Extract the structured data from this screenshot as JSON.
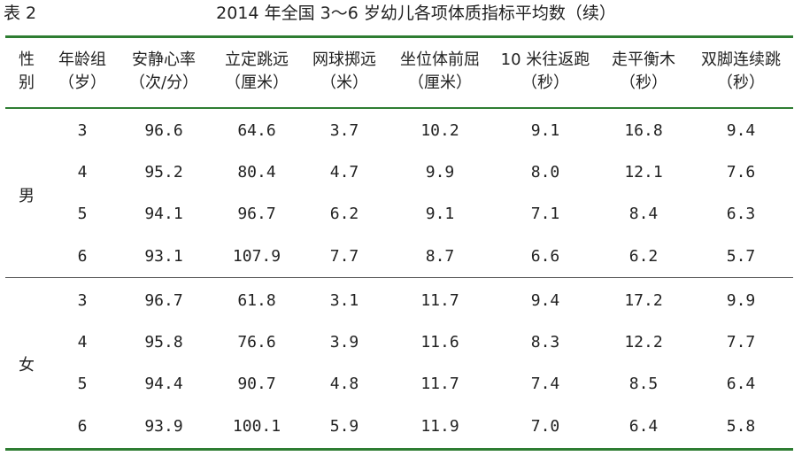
{
  "caption": {
    "label": "表 2",
    "title": "2014 年全国 3～6 岁幼儿各项体质指标平均数（续）"
  },
  "headers": [
    {
      "line1": "性",
      "line2": "别"
    },
    {
      "line1": "年龄组",
      "line2": "（岁）"
    },
    {
      "line1": "安静心率",
      "line2": "（次/分）"
    },
    {
      "line1": "立定跳远",
      "line2": "（厘米）"
    },
    {
      "line1": "网球掷远",
      "line2": "（米）"
    },
    {
      "line1": "坐位体前屈",
      "line2": "（厘米）"
    },
    {
      "line1": "10 米往返跑",
      "line2": "（秒）"
    },
    {
      "line1": "走平衡木",
      "line2": "（秒）"
    },
    {
      "line1": "双脚连续跳",
      "line2": "（秒）"
    }
  ],
  "groups": [
    {
      "gender": "男",
      "rows": [
        [
          "3",
          "96.6",
          "64.6",
          "3.7",
          "10.2",
          "9.1",
          "16.8",
          "9.4"
        ],
        [
          "4",
          "95.2",
          "80.4",
          "4.7",
          "9.9",
          "8.0",
          "12.1",
          "7.6"
        ],
        [
          "5",
          "94.1",
          "96.7",
          "6.2",
          "9.1",
          "7.1",
          "8.4",
          "6.3"
        ],
        [
          "6",
          "93.1",
          "107.9",
          "7.7",
          "8.7",
          "6.6",
          "6.2",
          "5.7"
        ]
      ]
    },
    {
      "gender": "女",
      "rows": [
        [
          "3",
          "96.7",
          "61.8",
          "3.1",
          "11.7",
          "9.4",
          "17.2",
          "9.9"
        ],
        [
          "4",
          "95.8",
          "76.6",
          "3.9",
          "11.6",
          "8.3",
          "12.2",
          "7.7"
        ],
        [
          "5",
          "94.4",
          "90.7",
          "4.8",
          "11.7",
          "7.4",
          "8.5",
          "6.4"
        ],
        [
          "6",
          "93.9",
          "100.1",
          "5.9",
          "11.9",
          "7.0",
          "6.4",
          "5.8"
        ]
      ]
    }
  ]
}
